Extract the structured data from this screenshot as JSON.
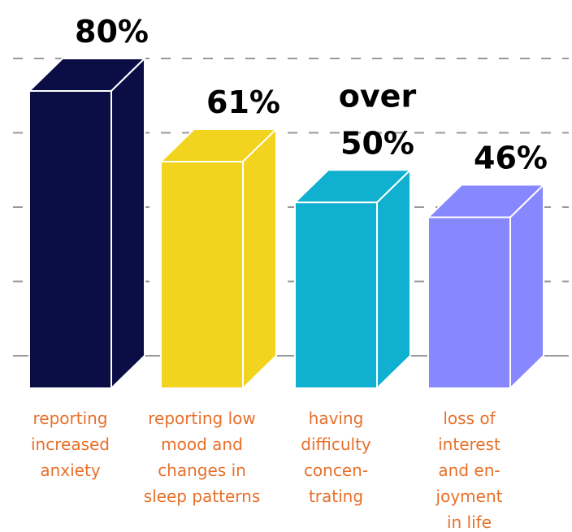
{
  "chart_data": {
    "type": "bar3d",
    "categories": [
      [
        "reporting",
        "increased",
        "anxiety"
      ],
      [
        "reporting low",
        "mood and",
        "changes in",
        "sleep patterns"
      ],
      [
        "having",
        "difficulty",
        "concen-",
        "trating"
      ],
      [
        "loss of",
        "interest",
        "and en-",
        "joyment",
        "in life"
      ]
    ],
    "values": [
      80,
      61,
      50,
      46
    ],
    "value_labels": [
      [
        "80%"
      ],
      [
        "61%"
      ],
      [
        "over",
        "50%"
      ],
      [
        "46%"
      ]
    ],
    "colors": [
      "#0b0e45",
      "#f2d41f",
      "#0fb0d0",
      "#8787ff"
    ],
    "ylim": [
      0,
      95
    ],
    "yticks": [
      0,
      20,
      40,
      60,
      80
    ],
    "grid": true
  }
}
